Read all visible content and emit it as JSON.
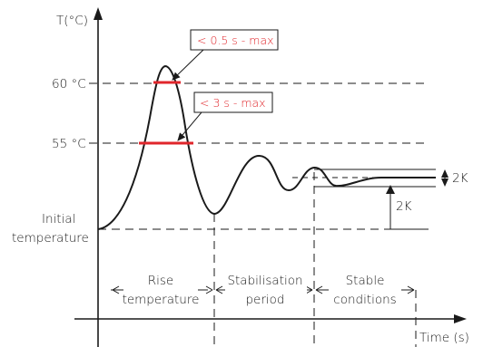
{
  "axes": {
    "y_label": "T(°C)",
    "x_label": "Time (s)"
  },
  "levels": [
    {
      "label": "60 °C"
    },
    {
      "label": "55 °C"
    },
    {
      "label_lines": [
        "Initial",
        "temperature"
      ]
    }
  ],
  "annotations": {
    "short_limit": "< 0.5 s - max",
    "long_limit": "< 3 s - max",
    "band_width": "2K",
    "step_size": "2K"
  },
  "phases": [
    {
      "lines": [
        "Rise",
        "temperature"
      ]
    },
    {
      "lines": [
        "Stabilisation",
        "period"
      ]
    },
    {
      "lines": [
        "Stable",
        "conditions"
      ]
    }
  ],
  "colors": {
    "line": "#1a1a1a",
    "accent": "#e0262b"
  }
}
